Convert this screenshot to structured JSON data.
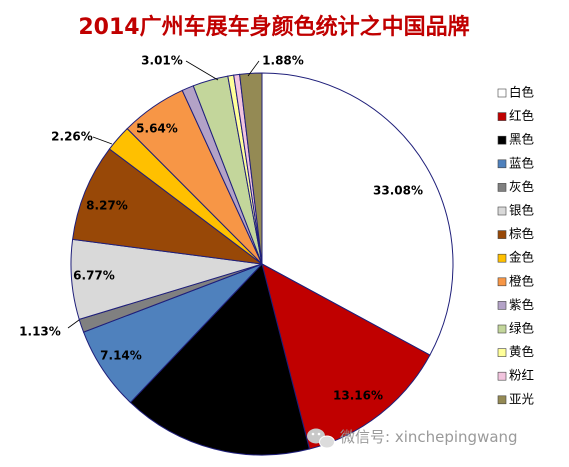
{
  "chart_data": {
    "type": "pie",
    "title": "2014广州车展车身颜色统计之中国品牌",
    "series": [
      {
        "name": "白色",
        "value": 33.08,
        "label": "33.08%",
        "color": "#ffffff"
      },
      {
        "name": "红色",
        "value": 13.16,
        "label": "13.16%",
        "color": "#c00000"
      },
      {
        "name": "黑色",
        "value": 16.17,
        "label": "16.17%",
        "color": "#000000"
      },
      {
        "name": "蓝色",
        "value": 7.14,
        "label": "7.14%",
        "color": "#4f81bd"
      },
      {
        "name": "灰色",
        "value": 1.13,
        "label": "1.13%",
        "color": "#808080"
      },
      {
        "name": "银色",
        "value": 6.77,
        "label": "6.77%",
        "color": "#d9d9d9"
      },
      {
        "name": "棕色",
        "value": 8.27,
        "label": "8.27%",
        "color": "#984807"
      },
      {
        "name": "金色",
        "value": 2.26,
        "label": "2.26%",
        "color": "#ffc000"
      },
      {
        "name": "橙色",
        "value": 5.64,
        "label": "5.64%",
        "color": "#f79646"
      },
      {
        "name": "紫色",
        "value": 1.0,
        "label": "",
        "color": "#b3a2c7"
      },
      {
        "name": "绿色",
        "value": 3.01,
        "label": "3.01%",
        "color": "#c3d69b"
      },
      {
        "name": "黄色",
        "value": 0.5,
        "label": "",
        "color": "#ffff99"
      },
      {
        "name": "粉红",
        "value": 0.5,
        "label": "",
        "color": "#f2c4de"
      },
      {
        "name": "亚光",
        "value": 1.88,
        "label": "1.88%",
        "color": "#948a54"
      }
    ],
    "legend_position": "right",
    "border_color": "#1f1f7a"
  },
  "watermark": {
    "text": "微信号: xinchepingwang",
    "icon": "wechat-icon"
  }
}
